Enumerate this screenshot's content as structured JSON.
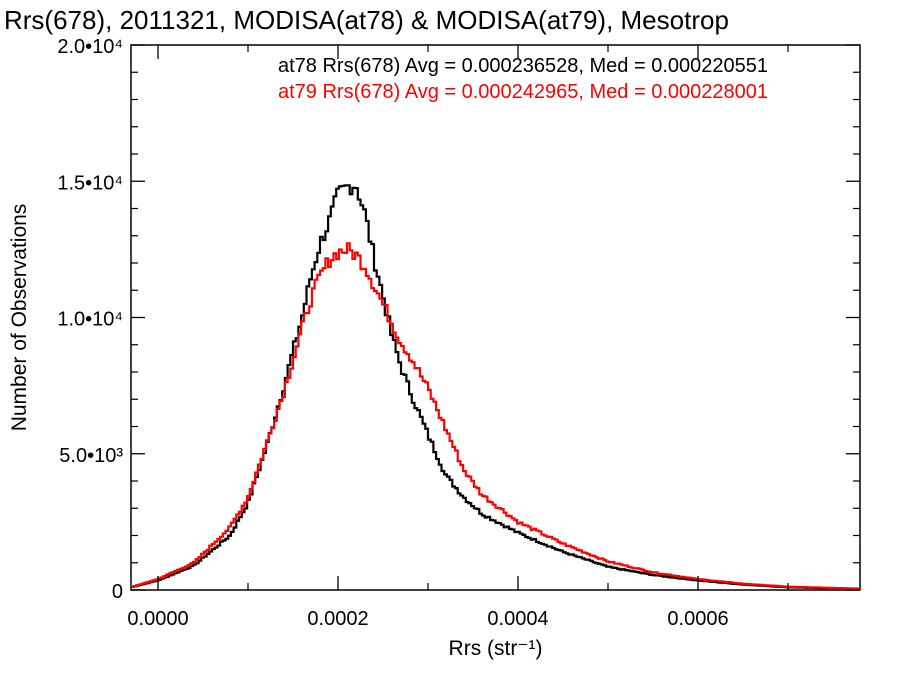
{
  "chart_data": {
    "type": "line",
    "title": "Rrs(678), 2011321, MODISA(at78) & MODISA(at79), Mesotrop",
    "xlabel": "Rrs (str⁻¹)",
    "ylabel": "Number of Observations",
    "xlim": [
      -3e-05,
      0.00078
    ],
    "ylim": [
      0,
      20000
    ],
    "x_ticks": [
      {
        "value": 0.0,
        "label": "0.0000"
      },
      {
        "value": 0.0002,
        "label": "0.0002"
      },
      {
        "value": 0.0004,
        "label": "0.0004"
      },
      {
        "value": 0.0006,
        "label": "0.0006"
      }
    ],
    "y_ticks": [
      {
        "value": 0,
        "label": "0"
      },
      {
        "value": 5000,
        "label": "5.0•10³"
      },
      {
        "value": 10000,
        "label": "1.0•10⁴"
      },
      {
        "value": 15000,
        "label": "1.5•10⁴"
      },
      {
        "value": 20000,
        "label": "2.0•10⁴"
      }
    ],
    "grid": false,
    "legend_position": "top-right",
    "annotations": [
      {
        "text": "at78 Rrs(678) Avg = 0.000236528, Med = 0.000220551",
        "color": "#000000"
      },
      {
        "text": "at79 Rrs(678) Avg = 0.000242965, Med = 0.000228001",
        "color": "#ff0000"
      }
    ],
    "series": [
      {
        "color": "#000000",
        "x": [
          -3e-05,
          0.0,
          4e-05,
          8e-05,
          0.0001,
          0.00012,
          0.00014,
          0.00016,
          0.00017,
          0.00018,
          0.00019,
          0.0002,
          0.00021,
          0.00022,
          0.00023,
          0.00024,
          0.00025,
          0.00026,
          0.00027,
          0.00028,
          0.0003,
          0.00032,
          0.00034,
          0.00036,
          0.0004,
          0.00045,
          0.0005,
          0.00055,
          0.0006,
          0.00065,
          0.0007,
          0.00078
        ],
        "y": [
          100,
          350,
          900,
          2000,
          3200,
          5200,
          7500,
          10000,
          11500,
          12700,
          13500,
          14500,
          14800,
          14900,
          13800,
          12200,
          10800,
          9300,
          8200,
          7300,
          5700,
          4200,
          3400,
          2800,
          2100,
          1400,
          850,
          550,
          350,
          200,
          100,
          40
        ]
      },
      {
        "color": "#ff0000",
        "x": [
          -3e-05,
          0.0,
          4e-05,
          8e-05,
          0.0001,
          0.00012,
          0.00014,
          0.00016,
          0.00017,
          0.00018,
          0.00019,
          0.0002,
          0.00021,
          0.00022,
          0.00023,
          0.00024,
          0.00025,
          0.00026,
          0.00027,
          0.00028,
          0.0003,
          0.00032,
          0.00034,
          0.00036,
          0.0004,
          0.00045,
          0.0005,
          0.00055,
          0.0006,
          0.00065,
          0.0007,
          0.00078
        ],
        "y": [
          100,
          400,
          1000,
          2300,
          3400,
          5300,
          7300,
          9600,
          10700,
          11500,
          12100,
          12400,
          12500,
          12300,
          11900,
          11200,
          10500,
          9800,
          9100,
          8600,
          7400,
          5900,
          4400,
          3500,
          2500,
          1700,
          1050,
          650,
          400,
          230,
          120,
          50
        ]
      }
    ]
  }
}
